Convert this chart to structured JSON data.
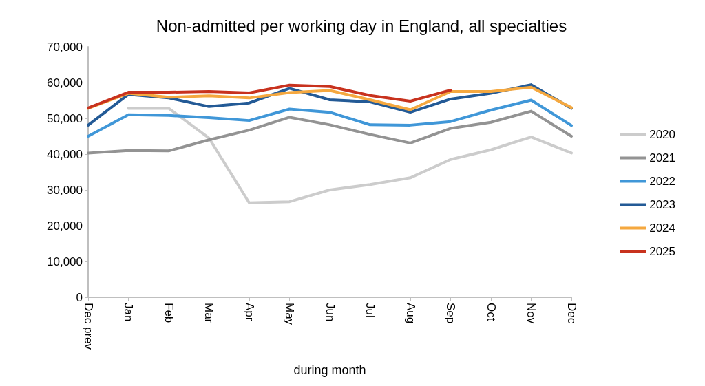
{
  "chart_data": {
    "type": "line",
    "title": "Non-admitted per working day in England, all specialties",
    "xlabel": "during month",
    "categories": [
      "Dec prev",
      "Jan",
      "Feb",
      "Mar",
      "Apr",
      "May",
      "Jun",
      "Jul",
      "Aug",
      "Sep",
      "Oct",
      "Nov",
      "Dec"
    ],
    "series": [
      {
        "name": "2020",
        "color": "#cccccc",
        "values": [
          null,
          52800,
          52800,
          44500,
          26400,
          26700,
          30000,
          31500,
          33400,
          38500,
          41200,
          44800,
          40300
        ]
      },
      {
        "name": "2021",
        "color": "#939393",
        "values": [
          40300,
          41000,
          40900,
          44000,
          46700,
          50300,
          48200,
          45500,
          43100,
          47200,
          48900,
          52000,
          45000
        ]
      },
      {
        "name": "2022",
        "color": "#4097d8",
        "values": [
          45000,
          51000,
          50800,
          50200,
          49400,
          52600,
          51700,
          48200,
          48100,
          49100,
          52300,
          55100,
          48000
        ]
      },
      {
        "name": "2023",
        "color": "#235a96",
        "values": [
          48100,
          56700,
          55700,
          53300,
          54300,
          58400,
          55200,
          54600,
          51700,
          55400,
          57000,
          59400,
          52800
        ]
      },
      {
        "name": "2024",
        "color": "#f5a83f",
        "values": [
          52800,
          57000,
          55900,
          56300,
          55700,
          57200,
          57800,
          55200,
          52400,
          57500,
          57500,
          58700,
          53000
        ]
      },
      {
        "name": "2025",
        "color": "#c8321e",
        "values": [
          52900,
          57300,
          57300,
          57500,
          57100,
          59300,
          58900,
          56400,
          54800,
          57900,
          null,
          null,
          null
        ]
      }
    ],
    "ylim": [
      0,
      70000
    ],
    "yticks": [
      0,
      {
        "value": 10000,
        "label": "10,000"
      },
      {
        "value": 20000,
        "label": "20,000"
      },
      {
        "value": 30000,
        "label": "30,000"
      },
      {
        "value": 40000,
        "label": "40,000"
      },
      {
        "value": 50000,
        "label": "50,000"
      },
      {
        "value": 60000,
        "label": "60,000"
      },
      {
        "value": 70000,
        "label": "70,000"
      }
    ],
    "grid": false,
    "legend": "right",
    "marker": "none",
    "line_style": "solid"
  }
}
